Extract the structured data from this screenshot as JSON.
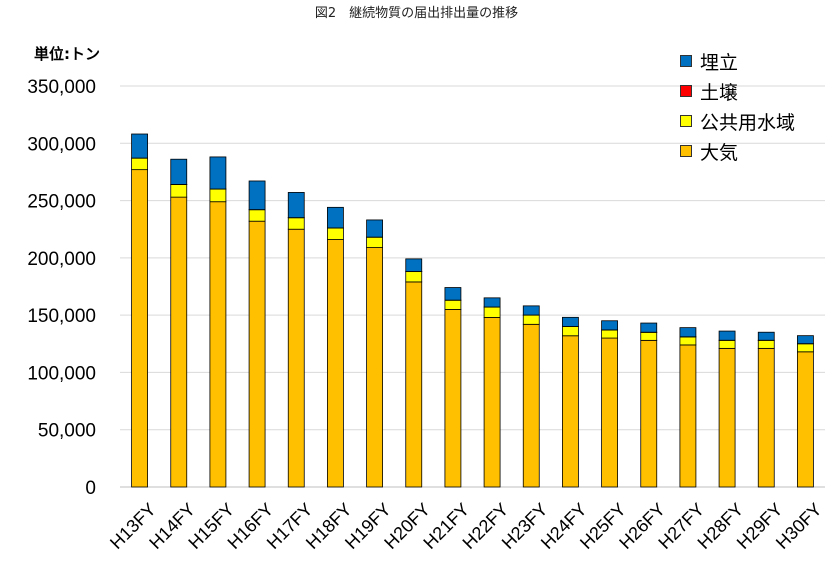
{
  "chart_data": {
    "type": "bar",
    "stacked": true,
    "title": "図2　継続物質の届出排出量の推移",
    "unit_label": "単位:トン",
    "categories": [
      "H13FY",
      "H14FY",
      "H15FY",
      "H16FY",
      "H17FY",
      "H18FY",
      "H19FY",
      "H20FY",
      "H21FY",
      "H22FY",
      "H23FY",
      "H24FY",
      "H25FY",
      "H26FY",
      "H27FY",
      "H28FY",
      "H29FY",
      "H30FY"
    ],
    "ylim": [
      0,
      350000
    ],
    "yticks": [
      0,
      50000,
      100000,
      150000,
      200000,
      250000,
      300000,
      350000
    ],
    "ytick_labels": [
      "0",
      "50,000",
      "100,000",
      "150,000",
      "200,000",
      "250,000",
      "300,000",
      "350,000"
    ],
    "grid": true,
    "legend_position": "top-right",
    "series": [
      {
        "name": "大気",
        "color": "#FFC000",
        "values": [
          277000,
          253000,
          249000,
          232000,
          225000,
          216000,
          209000,
          179000,
          155000,
          148000,
          142000,
          132000,
          130000,
          128000,
          124000,
          121000,
          121000,
          118000
        ]
      },
      {
        "name": "公共用水域",
        "color": "#FFFF00",
        "values": [
          10000,
          11000,
          11000,
          10000,
          10000,
          10000,
          9000,
          9000,
          8000,
          9000,
          8000,
          8000,
          7000,
          7000,
          7000,
          7000,
          7000,
          7000
        ]
      },
      {
        "name": "土壌",
        "color": "#FF0000",
        "values": [
          100,
          100,
          100,
          100,
          100,
          100,
          100,
          100,
          100,
          100,
          100,
          100,
          100,
          100,
          100,
          100,
          100,
          100
        ]
      },
      {
        "name": "埋立",
        "color": "#0070C0",
        "values": [
          21000,
          22000,
          28000,
          25000,
          22000,
          18000,
          15000,
          11000,
          11000,
          8000,
          8000,
          8000,
          8000,
          8000,
          8000,
          8000,
          7000,
          7000
        ]
      }
    ],
    "legend_order": [
      "埋立",
      "土壌",
      "公共用水域",
      "大気"
    ]
  }
}
